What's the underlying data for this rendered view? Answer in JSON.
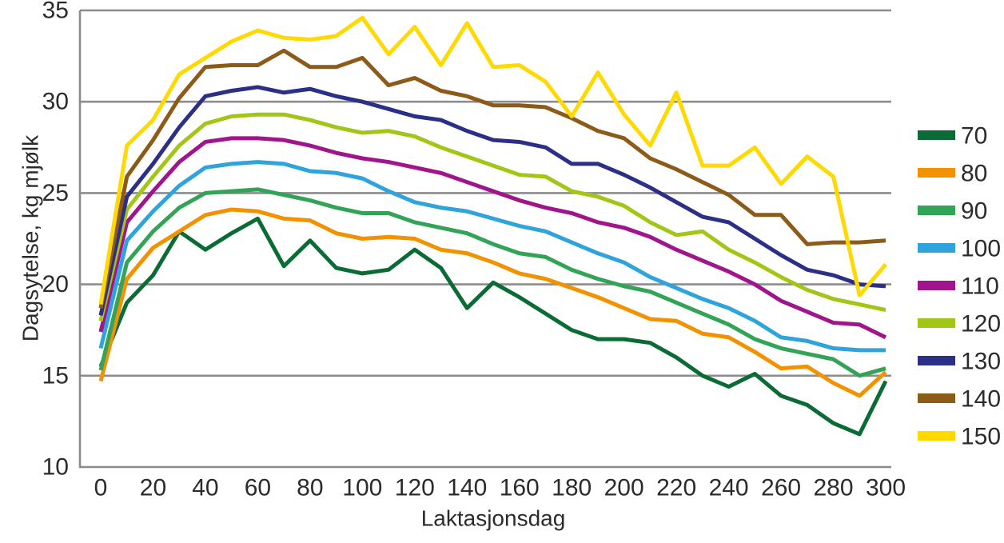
{
  "chart_data": {
    "type": "line",
    "title": "",
    "xlabel": "Laktasjonsdag",
    "ylabel": "Dagsytelse, kg mjølk",
    "xlim": [
      0,
      300
    ],
    "ylim": [
      10,
      35
    ],
    "xticks": [
      0,
      20,
      40,
      60,
      80,
      100,
      120,
      140,
      160,
      180,
      200,
      220,
      240,
      260,
      280,
      300
    ],
    "yticks": [
      35,
      30,
      25,
      20,
      15,
      10
    ],
    "grid": "horizontal",
    "grid_color": "#8C8C8C",
    "legend_position": "right",
    "x": [
      0,
      10,
      20,
      30,
      40,
      50,
      60,
      70,
      80,
      90,
      100,
      110,
      120,
      130,
      140,
      150,
      160,
      170,
      180,
      190,
      200,
      210,
      220,
      230,
      240,
      250,
      260,
      270,
      280,
      290,
      300
    ],
    "series": [
      {
        "name": "70",
        "color": "#0A6B34",
        "values": [
          15.5,
          19.0,
          20.5,
          22.9,
          21.9,
          22.8,
          23.6,
          21.0,
          22.4,
          20.9,
          20.6,
          20.8,
          21.9,
          20.9,
          18.7,
          20.1,
          19.3,
          18.4,
          17.5,
          17.0,
          17.0,
          16.8,
          16.0,
          15.0,
          14.4,
          15.1,
          13.9,
          13.4,
          12.4,
          11.8,
          14.7
        ]
      },
      {
        "name": "80",
        "color": "#F39200",
        "values": [
          14.7,
          20.3,
          22.0,
          22.9,
          23.8,
          24.1,
          24.0,
          23.6,
          23.5,
          22.8,
          22.5,
          22.6,
          22.5,
          21.9,
          21.7,
          21.2,
          20.6,
          20.3,
          19.8,
          19.3,
          18.7,
          18.1,
          18.0,
          17.3,
          17.1,
          16.3,
          15.4,
          15.5,
          14.6,
          13.9,
          15.2
        ]
      },
      {
        "name": "90",
        "color": "#33A457",
        "values": [
          15.3,
          21.2,
          22.9,
          24.2,
          25.0,
          25.1,
          25.2,
          24.9,
          24.6,
          24.2,
          23.9,
          23.9,
          23.4,
          23.1,
          22.8,
          22.2,
          21.7,
          21.5,
          20.8,
          20.3,
          19.9,
          19.6,
          19.0,
          18.4,
          17.8,
          17.0,
          16.5,
          16.2,
          15.9,
          15.0,
          15.4
        ]
      },
      {
        "name": "100",
        "color": "#2FA3DC",
        "values": [
          16.5,
          22.4,
          24.0,
          25.4,
          26.4,
          26.6,
          26.7,
          26.6,
          26.2,
          26.1,
          25.8,
          25.1,
          24.5,
          24.2,
          24.0,
          23.6,
          23.2,
          22.9,
          22.3,
          21.7,
          21.2,
          20.4,
          19.8,
          19.2,
          18.7,
          18.0,
          17.1,
          16.9,
          16.5,
          16.4,
          16.4
        ]
      },
      {
        "name": "110",
        "color": "#A0148C",
        "values": [
          17.4,
          23.4,
          25.1,
          26.7,
          27.8,
          28.0,
          28.0,
          27.9,
          27.6,
          27.2,
          26.9,
          26.7,
          26.4,
          26.1,
          25.6,
          25.1,
          24.6,
          24.2,
          23.9,
          23.4,
          23.1,
          22.6,
          21.9,
          21.3,
          20.7,
          20.0,
          19.1,
          18.5,
          17.9,
          17.8,
          17.1
        ]
      },
      {
        "name": "120",
        "color": "#A2C617",
        "values": [
          18.0,
          24.1,
          25.9,
          27.6,
          28.8,
          29.2,
          29.3,
          29.3,
          29.0,
          28.6,
          28.3,
          28.4,
          28.1,
          27.5,
          27.0,
          26.5,
          26.0,
          25.9,
          25.1,
          24.8,
          24.3,
          23.4,
          22.7,
          22.9,
          21.9,
          21.2,
          20.4,
          19.7,
          19.2,
          18.9,
          18.6
        ]
      },
      {
        "name": "130",
        "color": "#2B2F87",
        "values": [
          18.3,
          24.8,
          26.6,
          28.6,
          30.3,
          30.6,
          30.8,
          30.5,
          30.7,
          30.3,
          30.0,
          29.6,
          29.2,
          29.0,
          28.4,
          27.9,
          27.8,
          27.5,
          26.6,
          26.6,
          26.0,
          25.3,
          24.5,
          23.7,
          23.4,
          22.5,
          21.6,
          20.8,
          20.5,
          20.0,
          19.9
        ]
      },
      {
        "name": "140",
        "color": "#8C5A19",
        "values": [
          18.7,
          25.9,
          27.9,
          30.2,
          31.9,
          32.0,
          32.0,
          32.8,
          31.9,
          31.9,
          32.4,
          30.9,
          31.3,
          30.6,
          30.3,
          29.8,
          29.8,
          29.7,
          29.1,
          28.4,
          28.0,
          26.9,
          26.3,
          25.6,
          24.9,
          23.8,
          23.8,
          22.2,
          22.3,
          22.3,
          22.4
        ]
      },
      {
        "name": "150",
        "color": "#FFD900",
        "values": [
          18.9,
          27.6,
          29.0,
          31.5,
          32.4,
          33.3,
          33.9,
          33.5,
          33.4,
          33.6,
          34.6,
          32.6,
          34.1,
          32.0,
          34.3,
          31.9,
          32.0,
          31.1,
          29.2,
          31.6,
          29.3,
          27.6,
          30.5,
          26.5,
          26.5,
          27.5,
          25.5,
          27.0,
          25.9,
          19.4,
          21.1
        ]
      }
    ]
  }
}
